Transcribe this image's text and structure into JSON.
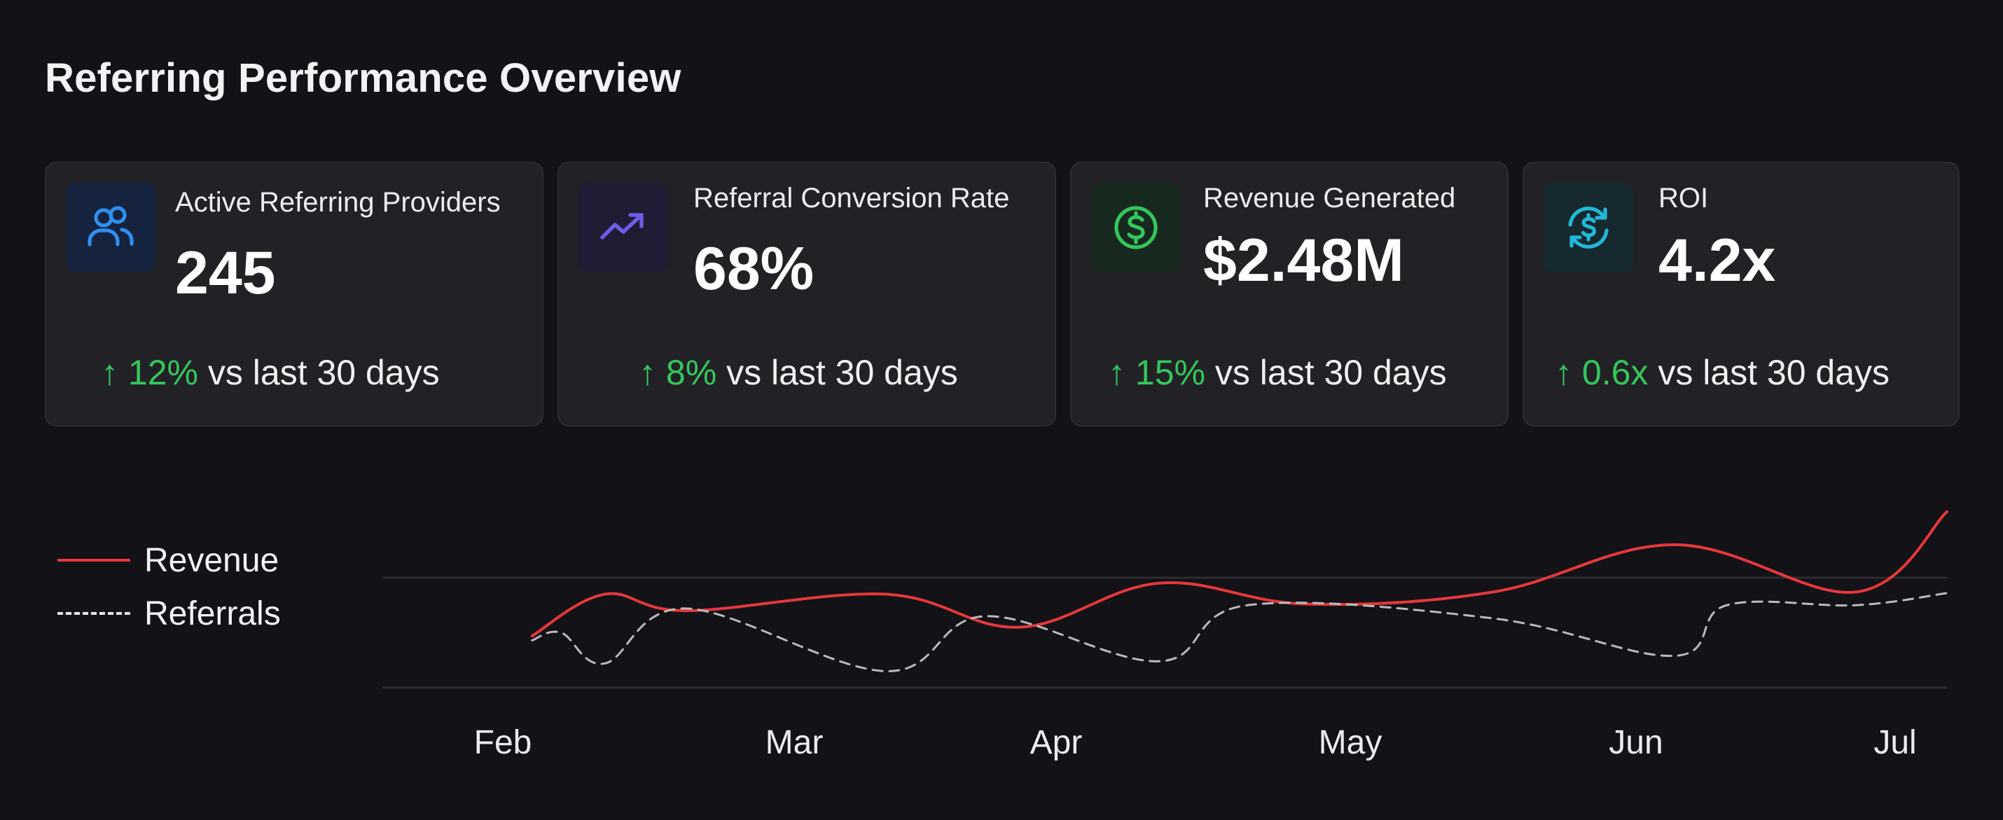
{
  "title": "Referring Performance Overview",
  "cards": [
    {
      "label": "Active Referring Providers",
      "value": "245",
      "trend_value": "12%",
      "trend_suffix": "vs last 30 days",
      "icon": "users-icon",
      "accent": "#2f8ff0",
      "icon_bg": "#15233f"
    },
    {
      "label": "Referral Conversion Rate",
      "value": "68%",
      "trend_value": "8%",
      "trend_suffix": "vs last 30 days",
      "icon": "trending-up-icon",
      "accent": "#6c5ce7",
      "icon_bg": "#1f1c33"
    },
    {
      "label": "Revenue Generated",
      "value": "$2.48M",
      "trend_value": "15%",
      "trend_suffix": "vs last 30 days",
      "icon": "dollar-circle-icon",
      "accent": "#34c65c",
      "icon_bg": "#17291f"
    },
    {
      "label": "ROI",
      "value": "4.2x",
      "trend_value": "0.6x",
      "trend_suffix": "vs last 30 days",
      "icon": "dollar-refresh-icon",
      "accent": "#22b8d8",
      "icon_bg": "#16292f"
    }
  ],
  "trend_arrow": "↑",
  "colors": {
    "background": "#131217",
    "card": "#222226",
    "positive": "#34c65c",
    "revenue_line": "#e5383b",
    "referrals_line": "#b9b9bf"
  },
  "chart_data": {
    "type": "line",
    "x_labels": [
      "Feb",
      "Mar",
      "Apr",
      "May",
      "Jun",
      "Jul"
    ],
    "y_range": [
      0,
      100
    ],
    "grid": "horizontal",
    "legend_position": "left",
    "series": [
      {
        "name": "Revenue",
        "style": "solid",
        "color": "#e5383b",
        "x": [
          0.1,
          0.35,
          0.63,
          1.35,
          1.86,
          2.35,
          2.85,
          3.5,
          4.15,
          4.85,
          5.2
        ],
        "y": [
          47,
          85,
          70,
          85,
          55,
          95,
          76,
          87,
          130,
          87,
          160
        ]
      },
      {
        "name": "Referrals",
        "style": "dashed",
        "color": "#b9b9bf",
        "x": [
          0.1,
          0.2,
          0.35,
          0.63,
          1.35,
          1.73,
          2.35,
          2.65,
          3.5,
          4.15,
          4.35,
          4.85,
          5.2
        ],
        "y": [
          43,
          50,
          22,
          72,
          15,
          65,
          24,
          75,
          63,
          29,
          75,
          75,
          86
        ]
      }
    ]
  }
}
